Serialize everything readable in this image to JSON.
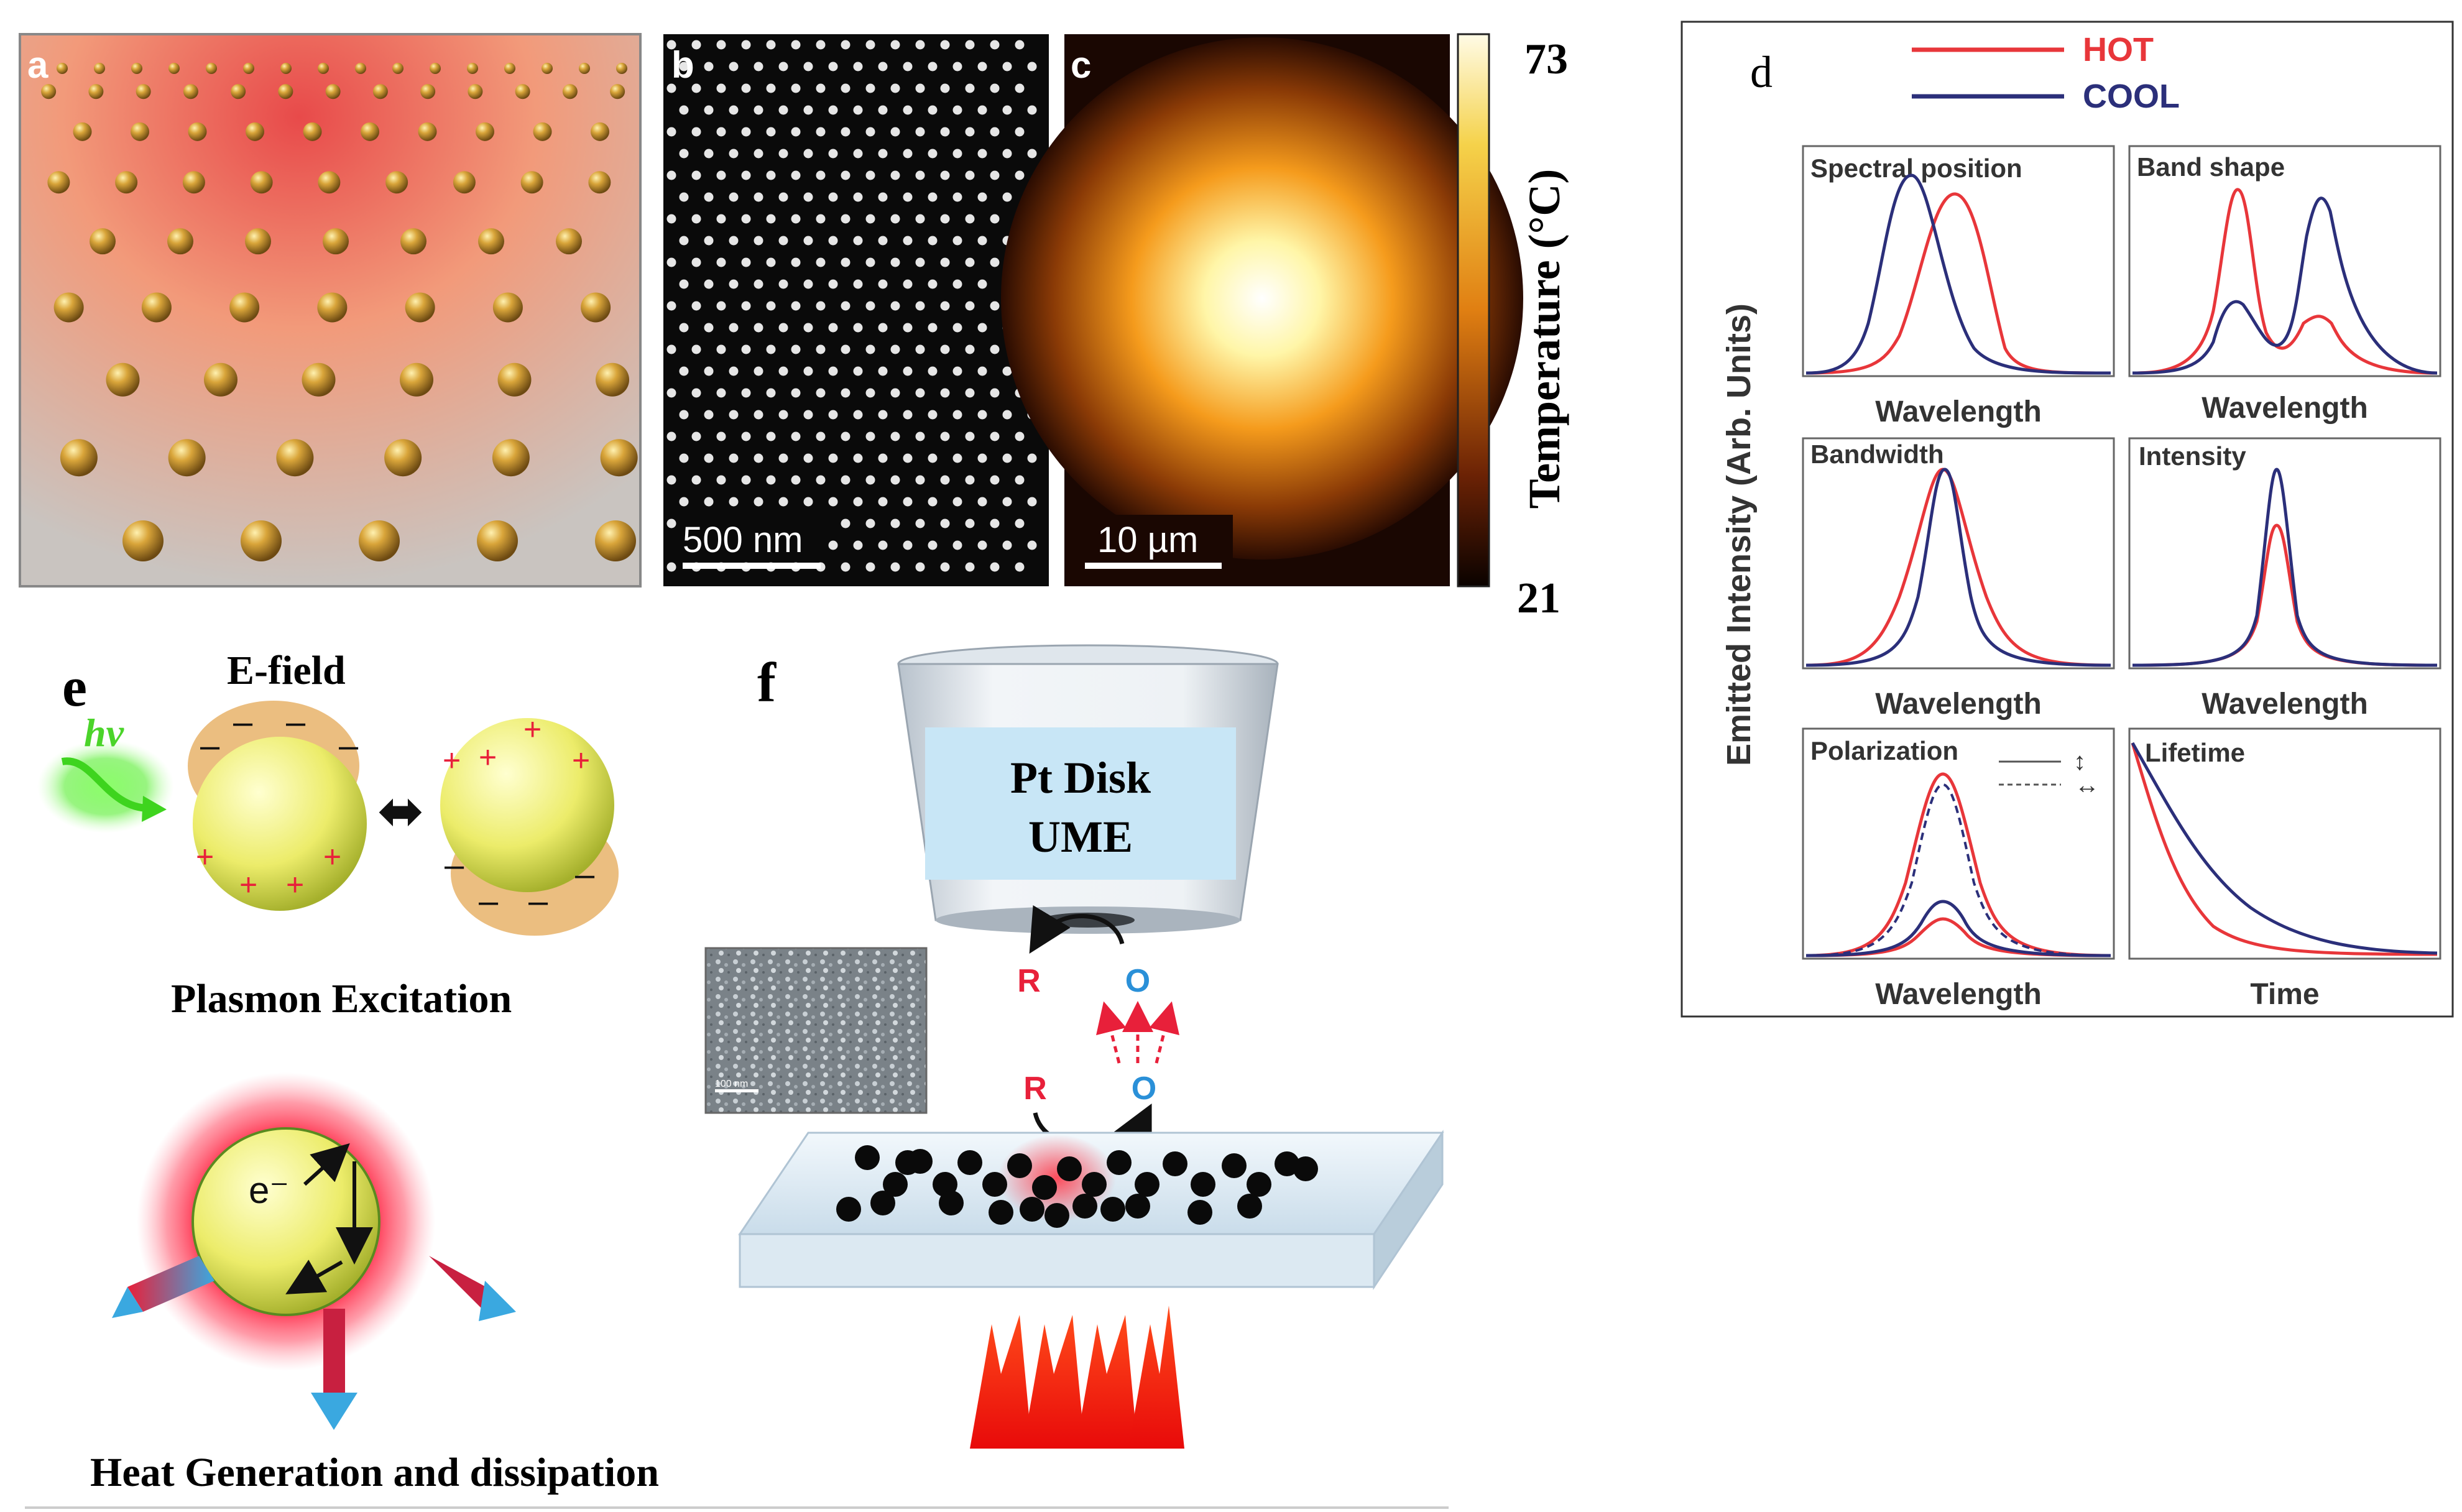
{
  "panels": {
    "a": {
      "label": "a"
    },
    "b": {
      "label": "b",
      "scalebar": "500 nm"
    },
    "c": {
      "label": "c",
      "scalebar": "10 µm"
    },
    "colorbar": {
      "max": "73",
      "min": "21",
      "title": "Temperature (°C)"
    },
    "d": {
      "label": "d",
      "legend": [
        {
          "name": "HOT",
          "color": "#e8363a"
        },
        {
          "name": "COOL",
          "color": "#2b2f7a"
        }
      ],
      "ylabel": "Emitted Intensity (Arb. Units)",
      "subplots": [
        {
          "title": "Spectral position",
          "xlabel": "Wavelength"
        },
        {
          "title": "Band shape",
          "xlabel": "Wavelength"
        },
        {
          "title": "Bandwidth",
          "xlabel": "Wavelength"
        },
        {
          "title": "Intensity",
          "xlabel": "Wavelength"
        },
        {
          "title": "Polarization",
          "xlabel": "Wavelength"
        },
        {
          "title": "Lifetime",
          "xlabel": "Time"
        }
      ]
    },
    "e": {
      "label": "e",
      "hv": "hν",
      "efield": "E-field",
      "plasmon_caption": "Plasmon Excitation",
      "electron": "e⁻",
      "heat_caption": "Heat Generation  and dissipation"
    },
    "f": {
      "label": "f",
      "electrode_line1": "Pt Disk",
      "electrode_line2": "UME",
      "r_top": "R",
      "o_top": "O",
      "r_bottom": "R",
      "o_bottom": "O",
      "inset_scale": "100 nm"
    }
  },
  "colors": {
    "hot": "#e8363a",
    "cool": "#2b2f7a",
    "gold": "#c8962e",
    "plasmon_yellow": "#ecec6a",
    "glow_red": "#ff2a3a",
    "laser_red": "#ff1a10",
    "r_label": "#e8203a",
    "o_label": "#2a90d8"
  }
}
